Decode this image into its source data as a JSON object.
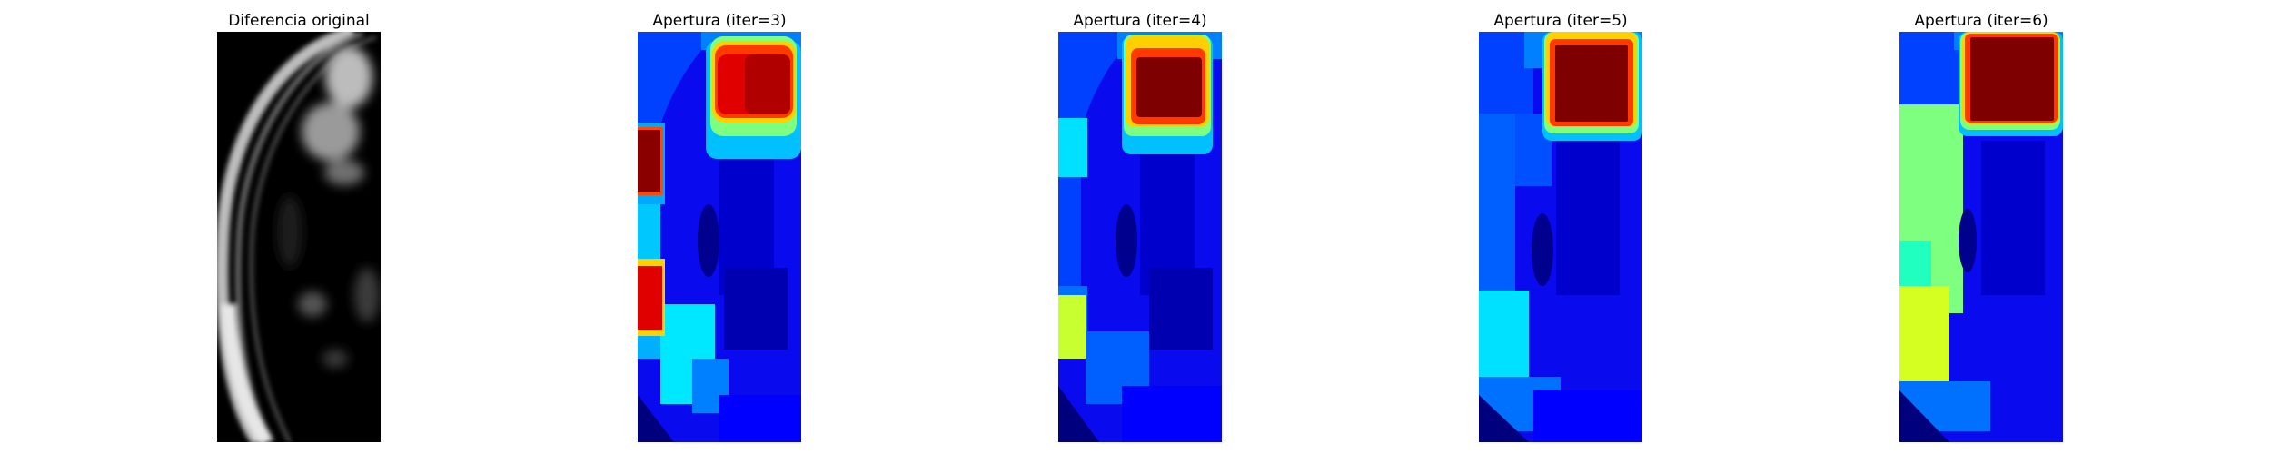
{
  "colormap": {
    "gray": [
      "#000000",
      "#ffffff"
    ],
    "jet": [
      "#00007f",
      "#0000ff",
      "#007fff",
      "#00ffff",
      "#7fff7f",
      "#ffff00",
      "#ff7f00",
      "#ff0000",
      "#7f0000"
    ]
  },
  "panels": [
    {
      "title": "Diferencia original",
      "colormap": "gray",
      "image": "mri-slice"
    },
    {
      "title": "Apertura (iter=3)",
      "colormap": "jet",
      "image": "opening-map"
    },
    {
      "title": "Apertura (iter=4)",
      "colormap": "jet",
      "image": "opening-map"
    },
    {
      "title": "Apertura (iter=5)",
      "colormap": "jet",
      "image": "opening-map"
    },
    {
      "title": "Apertura (iter=6)",
      "colormap": "jet",
      "image": "opening-map"
    }
  ]
}
